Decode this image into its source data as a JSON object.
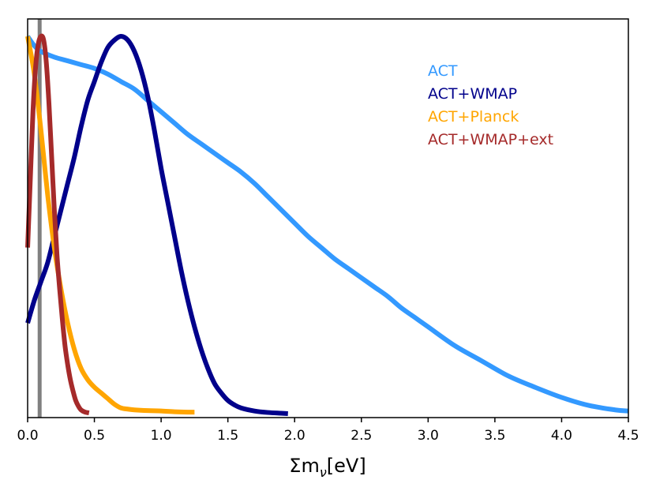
{
  "chart_data": {
    "type": "line",
    "title": "",
    "xlabel": "Σmν[eV]",
    "xlabel_main": "Σm",
    "xlabel_sub": "ν",
    "xlabel_unit": "[eV]",
    "ylabel": "",
    "xlim": [
      0.0,
      4.5
    ],
    "ylim": [
      0.0,
      1.0
    ],
    "xticks": [
      "0.0",
      "0.5",
      "1.0",
      "1.5",
      "2.0",
      "2.5",
      "3.0",
      "3.5",
      "4.0",
      "4.5"
    ],
    "yticks_visible": false,
    "legend_position": "upper-right",
    "reference_line": {
      "x": 0.09,
      "color": "#808080"
    },
    "series": [
      {
        "name": "ACT",
        "color": "#3399FF",
        "x": [
          0.0,
          0.05,
          0.1,
          0.2,
          0.3,
          0.4,
          0.5,
          0.6,
          0.7,
          0.8,
          0.9,
          1.0,
          1.1,
          1.2,
          1.3,
          1.4,
          1.5,
          1.6,
          1.7,
          1.8,
          1.9,
          2.0,
          2.1,
          2.2,
          2.3,
          2.4,
          2.5,
          2.6,
          2.7,
          2.8,
          2.9,
          3.0,
          3.2,
          3.4,
          3.6,
          3.8,
          4.0,
          4.2,
          4.4,
          4.5
        ],
        "y": [
          1.0,
          0.975,
          0.96,
          0.945,
          0.935,
          0.925,
          0.915,
          0.9,
          0.88,
          0.86,
          0.83,
          0.8,
          0.77,
          0.74,
          0.715,
          0.69,
          0.665,
          0.64,
          0.61,
          0.575,
          0.54,
          0.505,
          0.47,
          0.44,
          0.41,
          0.385,
          0.36,
          0.335,
          0.31,
          0.28,
          0.255,
          0.23,
          0.18,
          0.14,
          0.1,
          0.07,
          0.043,
          0.022,
          0.01,
          0.007
        ]
      },
      {
        "name": "ACT+WMAP",
        "color": "#00008B",
        "x": [
          0.0,
          0.05,
          0.1,
          0.15,
          0.2,
          0.25,
          0.3,
          0.35,
          0.4,
          0.45,
          0.5,
          0.55,
          0.6,
          0.65,
          0.7,
          0.75,
          0.8,
          0.85,
          0.9,
          0.95,
          1.0,
          1.05,
          1.1,
          1.15,
          1.2,
          1.25,
          1.3,
          1.35,
          1.4,
          1.45,
          1.5,
          1.55,
          1.6,
          1.7,
          1.8,
          1.9,
          1.95
        ],
        "y": [
          0.24,
          0.3,
          0.35,
          0.4,
          0.47,
          0.54,
          0.61,
          0.68,
          0.76,
          0.83,
          0.88,
          0.93,
          0.97,
          0.99,
          1.0,
          0.99,
          0.96,
          0.91,
          0.84,
          0.75,
          0.65,
          0.56,
          0.47,
          0.38,
          0.3,
          0.23,
          0.17,
          0.12,
          0.08,
          0.055,
          0.035,
          0.023,
          0.015,
          0.007,
          0.003,
          0.001,
          0.0
        ]
      },
      {
        "name": "ACT+Planck",
        "color": "#FFA500",
        "x": [
          0.0,
          0.05,
          0.1,
          0.15,
          0.2,
          0.25,
          0.3,
          0.35,
          0.4,
          0.45,
          0.5,
          0.55,
          0.6,
          0.65,
          0.7,
          0.75,
          0.8,
          0.9,
          1.0,
          1.1,
          1.2,
          1.25
        ],
        "y": [
          1.0,
          0.9,
          0.75,
          0.58,
          0.44,
          0.33,
          0.24,
          0.17,
          0.12,
          0.09,
          0.07,
          0.055,
          0.04,
          0.025,
          0.015,
          0.012,
          0.01,
          0.008,
          0.007,
          0.005,
          0.004,
          0.004
        ]
      },
      {
        "name": "ACT+WMAP+ext",
        "color": "#A52A2A",
        "x": [
          0.0,
          0.02,
          0.04,
          0.06,
          0.08,
          0.1,
          0.12,
          0.14,
          0.16,
          0.18,
          0.2,
          0.22,
          0.24,
          0.26,
          0.28,
          0.3,
          0.32,
          0.34,
          0.36,
          0.38,
          0.4,
          0.43,
          0.46
        ],
        "y": [
          0.44,
          0.62,
          0.8,
          0.92,
          0.98,
          1.0,
          0.99,
          0.93,
          0.82,
          0.68,
          0.54,
          0.42,
          0.33,
          0.25,
          0.18,
          0.13,
          0.09,
          0.06,
          0.035,
          0.02,
          0.01,
          0.004,
          0.002
        ]
      }
    ]
  }
}
